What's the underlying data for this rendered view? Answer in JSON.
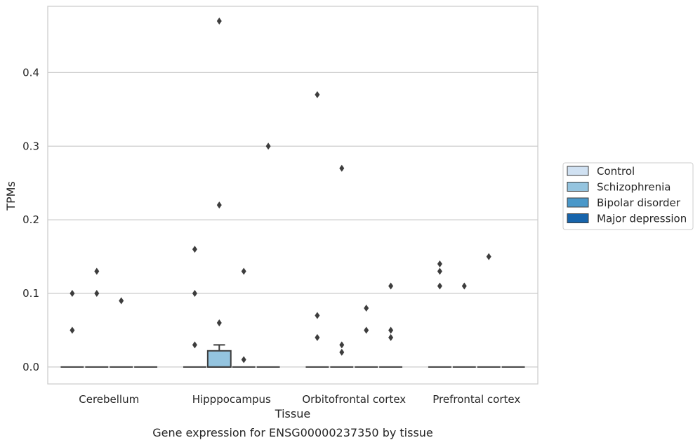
{
  "chart_data": {
    "type": "box",
    "title": "",
    "caption": "Gene expression for ENSG00000237350 by tissue",
    "xlabel": "Tissue",
    "ylabel": "TPMs",
    "categories": [
      "Cerebellum",
      "Hipppocampus",
      "Orbitofrontal cortex",
      "Prefrontal cortex"
    ],
    "ylim": [
      -0.023,
      0.49
    ],
    "yticks": [
      0.0,
      0.1,
      0.2,
      0.3,
      0.4
    ],
    "ytick_labels": [
      "0.0",
      "0.1",
      "0.2",
      "0.3",
      "0.4"
    ],
    "grid": true,
    "legend_placement": "right",
    "series": [
      {
        "name": "Control",
        "color": "#d0e1f2"
      },
      {
        "name": "Schizophrenia",
        "color": "#94c4df"
      },
      {
        "name": "Bipolar disorder",
        "color": "#4a98c9"
      },
      {
        "name": "Major depression",
        "color": "#1764ab"
      }
    ],
    "boxes": [
      {
        "category": "Cerebellum",
        "series": "Control",
        "q1": 0,
        "median": 0,
        "q3": 0,
        "whisker_low": 0,
        "whisker_high": 0,
        "outliers": [
          0.05,
          0.1
        ]
      },
      {
        "category": "Cerebellum",
        "series": "Schizophrenia",
        "q1": 0,
        "median": 0,
        "q3": 0,
        "whisker_low": 0,
        "whisker_high": 0,
        "outliers": [
          0.13,
          0.1
        ]
      },
      {
        "category": "Cerebellum",
        "series": "Bipolar disorder",
        "q1": 0,
        "median": 0,
        "q3": 0,
        "whisker_low": 0,
        "whisker_high": 0,
        "outliers": [
          0.09
        ]
      },
      {
        "category": "Cerebellum",
        "series": "Major depression",
        "q1": 0,
        "median": 0,
        "q3": 0,
        "whisker_low": 0,
        "whisker_high": 0,
        "outliers": []
      },
      {
        "category": "Hipppocampus",
        "series": "Control",
        "q1": 0,
        "median": 0,
        "q3": 0,
        "whisker_low": 0,
        "whisker_high": 0,
        "outliers": [
          0.16,
          0.1,
          0.03
        ]
      },
      {
        "category": "Hipppocampus",
        "series": "Schizophrenia",
        "q1": 0,
        "median": 0,
        "q3": 0.022,
        "whisker_low": 0,
        "whisker_high": 0.03,
        "outliers": [
          0.47,
          0.22,
          0.06
        ]
      },
      {
        "category": "Hipppocampus",
        "series": "Bipolar disorder",
        "q1": 0,
        "median": 0,
        "q3": 0,
        "whisker_low": 0,
        "whisker_high": 0,
        "outliers": [
          0.13,
          0.01
        ]
      },
      {
        "category": "Hipppocampus",
        "series": "Major depression",
        "q1": 0,
        "median": 0,
        "q3": 0,
        "whisker_low": 0,
        "whisker_high": 0,
        "outliers": [
          0.3
        ]
      },
      {
        "category": "Orbitofrontal cortex",
        "series": "Control",
        "q1": 0,
        "median": 0,
        "q3": 0,
        "whisker_low": 0,
        "whisker_high": 0,
        "outliers": [
          0.37,
          0.07,
          0.04
        ]
      },
      {
        "category": "Orbitofrontal cortex",
        "series": "Schizophrenia",
        "q1": 0,
        "median": 0,
        "q3": 0,
        "whisker_low": 0,
        "whisker_high": 0,
        "outliers": [
          0.27,
          0.03,
          0.02
        ]
      },
      {
        "category": "Orbitofrontal cortex",
        "series": "Bipolar disorder",
        "q1": 0,
        "median": 0,
        "q3": 0,
        "whisker_low": 0,
        "whisker_high": 0,
        "outliers": [
          0.08,
          0.05
        ]
      },
      {
        "category": "Orbitofrontal cortex",
        "series": "Major depression",
        "q1": 0,
        "median": 0,
        "q3": 0,
        "whisker_low": 0,
        "whisker_high": 0,
        "outliers": [
          0.11,
          0.05,
          0.04
        ]
      },
      {
        "category": "Prefrontal cortex",
        "series": "Control",
        "q1": 0,
        "median": 0,
        "q3": 0,
        "whisker_low": 0,
        "whisker_high": 0,
        "outliers": [
          0.14,
          0.13,
          0.11
        ]
      },
      {
        "category": "Prefrontal cortex",
        "series": "Schizophrenia",
        "q1": 0,
        "median": 0,
        "q3": 0,
        "whisker_low": 0,
        "whisker_high": 0,
        "outliers": [
          0.11
        ]
      },
      {
        "category": "Prefrontal cortex",
        "series": "Bipolar disorder",
        "q1": 0,
        "median": 0,
        "q3": 0,
        "whisker_low": 0,
        "whisker_high": 0,
        "outliers": [
          0.15
        ]
      },
      {
        "category": "Prefrontal cortex",
        "series": "Major depression",
        "q1": 0,
        "median": 0,
        "q3": 0,
        "whisker_low": 0,
        "whisker_high": 0,
        "outliers": []
      }
    ]
  }
}
